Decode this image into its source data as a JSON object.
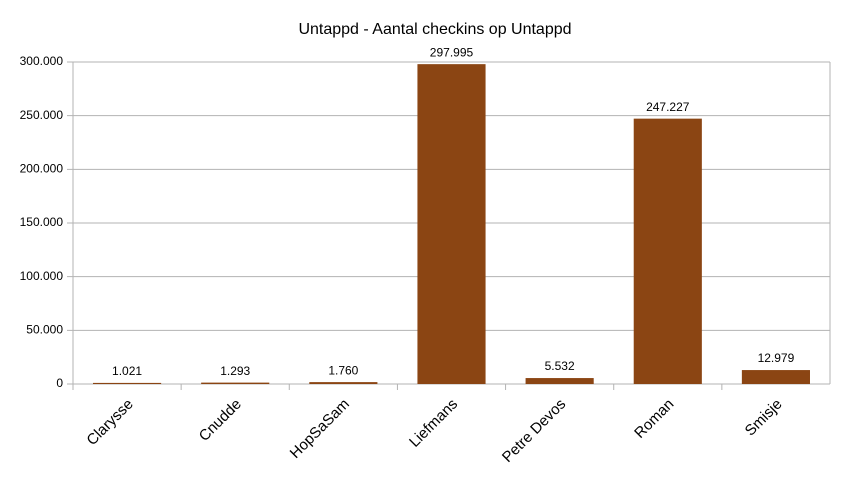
{
  "chart_data": {
    "type": "bar",
    "title": "Untappd - Aantal checkins op Untappd",
    "categories": [
      "Clarysse",
      "Cnudde",
      "HopSaSam",
      "Liefmans",
      "Petre Devos",
      "Roman",
      "Smisje"
    ],
    "values": [
      1021,
      1293,
      1760,
      297995,
      5532,
      247227,
      12979
    ],
    "value_labels": [
      "1.021",
      "1.293",
      "1.760",
      "297.995",
      "5.532",
      "247.227",
      "12.979"
    ],
    "color": "#8b4513",
    "ylim": [
      0,
      300000
    ],
    "yticks": [
      0,
      {
        "value": 50000,
        "label": "50.000"
      },
      {
        "value": 100000,
        "label": "100.000"
      },
      {
        "value": 150000,
        "label": "150.000"
      },
      {
        "value": 200000,
        "label": "200.000"
      },
      {
        "value": 250000,
        "label": "250.000"
      },
      {
        "value": 300000,
        "label": "300.000"
      }
    ],
    "grid": true
  }
}
